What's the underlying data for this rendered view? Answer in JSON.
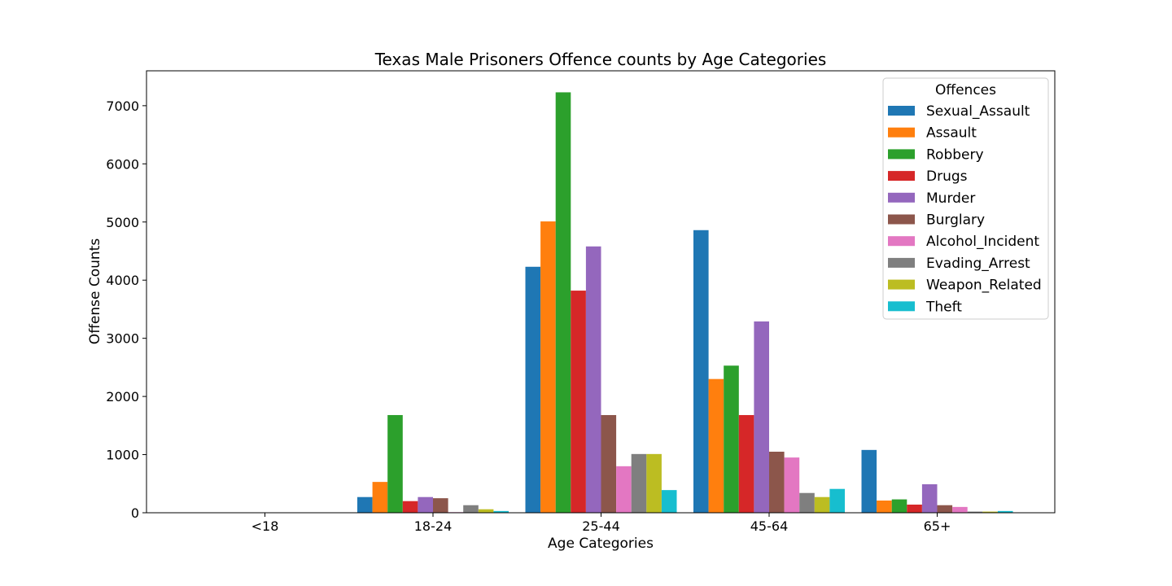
{
  "chart_data": {
    "type": "bar",
    "title": "Texas Male Prisoners Offence counts by Age Categories",
    "xlabel": "Age Categories",
    "ylabel": "Offense Counts",
    "categories": [
      "<18",
      "18-24",
      "25-44",
      "45-64",
      "65+"
    ],
    "ylim": [
      0,
      7600
    ],
    "yticks": [
      0,
      1000,
      2000,
      3000,
      4000,
      5000,
      6000,
      7000
    ],
    "legend_title": "Offences",
    "legend_position": "top-right",
    "grid": false,
    "series": [
      {
        "name": "Sexual_Assault",
        "color": "#1f77b4",
        "values": [
          0,
          270,
          4230,
          4860,
          1080
        ]
      },
      {
        "name": "Assault",
        "color": "#ff7f0e",
        "values": [
          0,
          530,
          5010,
          2300,
          210
        ]
      },
      {
        "name": "Robbery",
        "color": "#2ca02c",
        "values": [
          0,
          1680,
          7230,
          2530,
          230
        ]
      },
      {
        "name": "Drugs",
        "color": "#d62728",
        "values": [
          0,
          200,
          3820,
          1680,
          140
        ]
      },
      {
        "name": "Murder",
        "color": "#9467bd",
        "values": [
          0,
          270,
          4580,
          3290,
          490
        ]
      },
      {
        "name": "Burglary",
        "color": "#8c564b",
        "values": [
          0,
          250,
          1680,
          1050,
          130
        ]
      },
      {
        "name": "Alcohol_Incident",
        "color": "#e377c2",
        "values": [
          0,
          10,
          800,
          950,
          100
        ]
      },
      {
        "name": "Evading_Arrest",
        "color": "#7f7f7f",
        "values": [
          0,
          130,
          1010,
          340,
          20
        ]
      },
      {
        "name": "Weapon_Related",
        "color": "#bcbd22",
        "values": [
          0,
          60,
          1010,
          270,
          20
        ]
      },
      {
        "name": "Theft",
        "color": "#17becf",
        "values": [
          0,
          30,
          390,
          410,
          30
        ]
      }
    ]
  }
}
